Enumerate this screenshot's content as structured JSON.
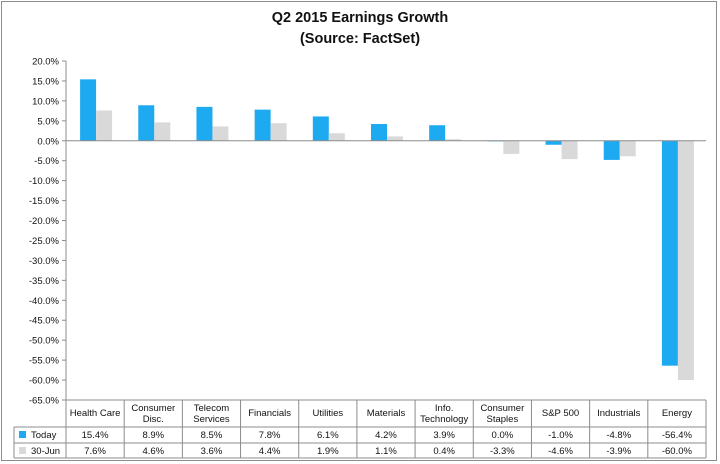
{
  "chart_data": {
    "type": "bar",
    "title": "Q2 2015 Earnings Growth",
    "subtitle": "(Source: FactSet)",
    "categories": [
      [
        "Health Care"
      ],
      [
        "Consumer",
        "Disc."
      ],
      [
        "Telecom",
        "Services"
      ],
      [
        "Financials"
      ],
      [
        "Utilities"
      ],
      [
        "Materials"
      ],
      [
        "Info.",
        "Technology"
      ],
      [
        "Consumer",
        "Staples"
      ],
      [
        "S&P 500"
      ],
      [
        "Industrials"
      ],
      [
        "Energy"
      ]
    ],
    "series": [
      {
        "name": "Today",
        "color": "#1eaaf1",
        "values": [
          15.4,
          8.9,
          8.5,
          7.8,
          6.1,
          4.2,
          3.9,
          0.0,
          -1.0,
          -4.8,
          -56.4
        ],
        "labels": [
          "15.4%",
          "8.9%",
          "8.5%",
          "7.8%",
          "6.1%",
          "4.2%",
          "3.9%",
          "0.0%",
          "-1.0%",
          "-4.8%",
          "-56.4%"
        ]
      },
      {
        "name": "30-Jun",
        "color": "#d9d9d9",
        "values": [
          7.6,
          4.6,
          3.6,
          4.4,
          1.9,
          1.1,
          0.4,
          -3.3,
          -4.6,
          -3.9,
          -60.0
        ],
        "labels": [
          "7.6%",
          "4.6%",
          "3.6%",
          "4.4%",
          "1.9%",
          "1.1%",
          "0.4%",
          "-3.3%",
          "-4.6%",
          "-3.9%",
          "-60.0%"
        ]
      }
    ],
    "ylim": [
      -65,
      20
    ],
    "ytick_step": 5,
    "ytick_labels": [
      "20.0%",
      "15.0%",
      "10.0%",
      "5.0%",
      "0.0%",
      "-5.0%",
      "-10.0%",
      "-15.0%",
      "-20.0%",
      "-25.0%",
      "-30.0%",
      "-35.0%",
      "-40.0%",
      "-45.0%",
      "-50.0%",
      "-55.0%",
      "-60.0%",
      "-65.0%"
    ],
    "grid": false,
    "legend": "data-table"
  }
}
